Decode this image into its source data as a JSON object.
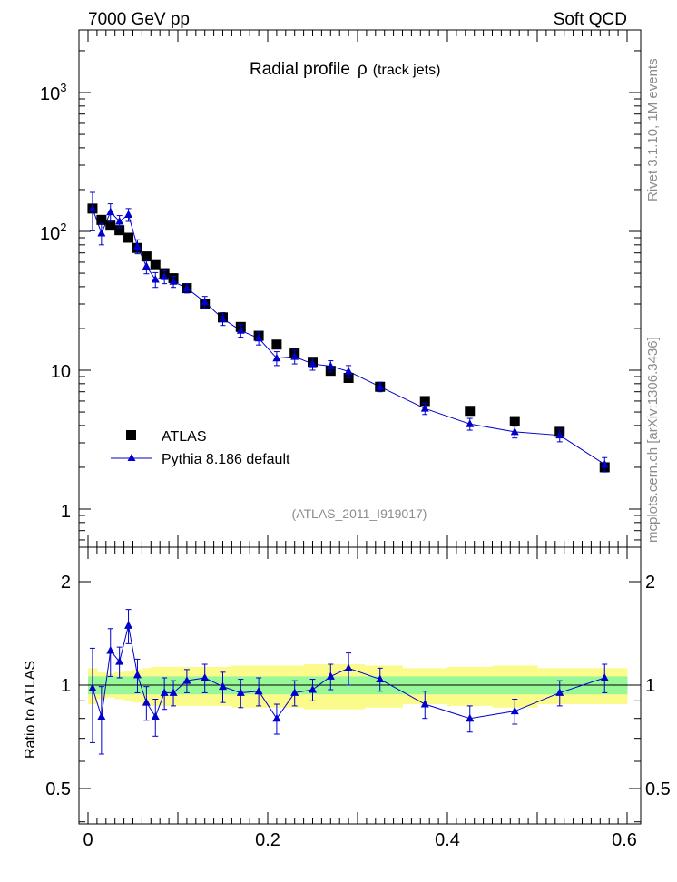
{
  "header": {
    "energy_label": "7000 GeV pp",
    "process_label": "Soft QCD"
  },
  "side_labels": {
    "rivet": "Rivet 3.1.10,  1M events",
    "mcplots": "mcplots.cern.ch [arXiv:1306.3436]"
  },
  "colors": {
    "mc": "#0000cc",
    "data": "#000000",
    "band_inner": "#98f898",
    "band_outer": "#fbfb8c",
    "analysis_text": "#8c8c8c"
  },
  "chart_data": [
    {
      "type": "scatter",
      "title": "Radial profile",
      "title_symbol": "ρ",
      "title_suffix": "(track jets)",
      "analysis_id": "(ATLAS_2011_I919017)",
      "yscale": "log",
      "ylim": [
        0.6,
        2600
      ],
      "xlim": [
        -0.005,
        0.605
      ],
      "ytick_labels": {
        "exp3": "3",
        "exp2": "2",
        "ten": "10",
        "one": "1"
      },
      "legend": {
        "position": "bottom-left",
        "entries": [
          "ATLAS",
          "Pythia 8.186 default"
        ]
      },
      "x": [
        0.005,
        0.015,
        0.025,
        0.035,
        0.045,
        0.055,
        0.065,
        0.075,
        0.085,
        0.095,
        0.11,
        0.13,
        0.15,
        0.17,
        0.19,
        0.21,
        0.23,
        0.25,
        0.27,
        0.29,
        0.325,
        0.375,
        0.425,
        0.475,
        0.525,
        0.575
      ],
      "series": [
        {
          "name": "ATLAS",
          "marker": "square",
          "values": [
            146,
            121,
            110,
            102,
            90,
            76,
            66,
            58,
            50,
            46,
            39,
            30,
            24,
            20.5,
            17.7,
            15.3,
            13.2,
            11.5,
            9.9,
            8.8,
            7.6,
            6.0,
            5.1,
            4.3,
            3.6,
            2.0
          ]
        },
        {
          "name": "Pythia 8.186 default",
          "marker": "triangle",
          "values": [
            146,
            97,
            138,
            118,
            132,
            78,
            56,
            45,
            47,
            43.5,
            39,
            31,
            23.5,
            19.3,
            17,
            12.2,
            12.5,
            11.1,
            10.7,
            9.8,
            7.6,
            5.3,
            4.1,
            3.6,
            3.4,
            2.1
          ],
          "errors": [
            45,
            17,
            20,
            12,
            14,
            9,
            6.5,
            5.5,
            5,
            4,
            3,
            3,
            2.5,
            2,
            1.8,
            1.4,
            1.4,
            1.1,
            1,
            1,
            0.6,
            0.5,
            0.4,
            0.35,
            0.35,
            0.25
          ]
        }
      ]
    },
    {
      "type": "scatter",
      "ylabel": "Ratio to ATLAS",
      "ylim": [
        0.4,
        2.4
      ],
      "xlim": [
        -0.005,
        0.605
      ],
      "yticks": [
        "0.5",
        "1",
        "2"
      ],
      "xticks": [
        "0",
        "0.2",
        "0.4",
        "0.6"
      ],
      "ratio": [
        0.98,
        0.81,
        1.26,
        1.17,
        1.49,
        1.07,
        0.89,
        0.81,
        0.95,
        0.95,
        1.03,
        1.05,
        0.99,
        0.95,
        0.96,
        0.8,
        0.95,
        0.97,
        1.06,
        1.12,
        1.04,
        0.88,
        0.8,
        0.84,
        0.95,
        1.05
      ],
      "ratio_errors": [
        0.3,
        0.18,
        0.2,
        0.12,
        0.17,
        0.12,
        0.1,
        0.1,
        0.1,
        0.08,
        0.08,
        0.1,
        0.1,
        0.09,
        0.09,
        0.08,
        0.08,
        0.07,
        0.09,
        0.12,
        0.08,
        0.08,
        0.07,
        0.07,
        0.08,
        0.1
      ],
      "band_inner_halfwidth": [
        0.06,
        0.06,
        0.06,
        0.06,
        0.06,
        0.06,
        0.06,
        0.06,
        0.06,
        0.06,
        0.06,
        0.06,
        0.06,
        0.06,
        0.06,
        0.06,
        0.06,
        0.06,
        0.06,
        0.06,
        0.06,
        0.06,
        0.06,
        0.06,
        0.06,
        0.06
      ],
      "band_outer_halfwidth": [
        0.12,
        0.09,
        0.08,
        0.09,
        0.1,
        0.11,
        0.12,
        0.13,
        0.13,
        0.13,
        0.13,
        0.13,
        0.13,
        0.14,
        0.14,
        0.14,
        0.14,
        0.15,
        0.15,
        0.15,
        0.14,
        0.12,
        0.13,
        0.14,
        0.12,
        0.12
      ]
    }
  ]
}
